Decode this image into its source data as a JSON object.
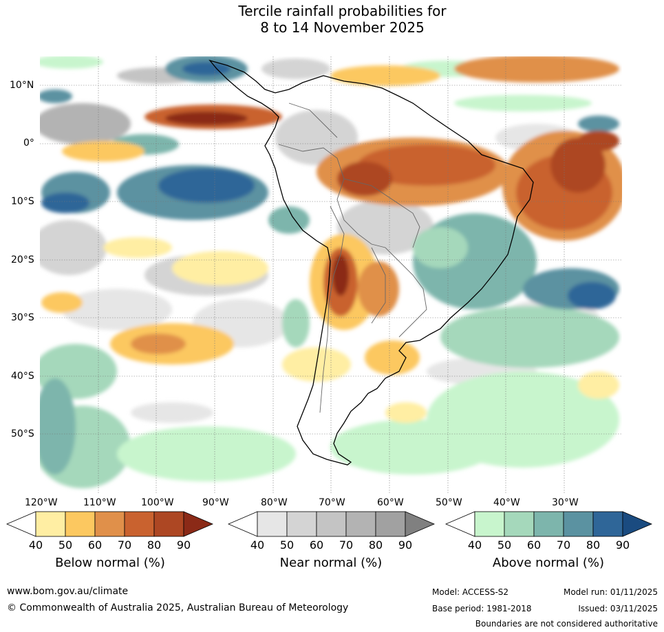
{
  "title": {
    "line1": "Tercile rainfall probabilities for",
    "line2": "8 to 14 November 2025"
  },
  "map": {
    "region": "South America",
    "lat_labels": [
      "10°N",
      "0°",
      "10°S",
      "20°S",
      "30°S",
      "40°S",
      "50°S"
    ],
    "lon_labels": [
      "120°W",
      "110°W",
      "100°W",
      "90°W",
      "80°W",
      "70°W",
      "60°W",
      "50°W",
      "40°W",
      "30°W"
    ]
  },
  "colorbars": [
    {
      "id": "below",
      "title": "Below normal (%)",
      "ticks": [
        "40",
        "50",
        "60",
        "70",
        "80",
        "90"
      ],
      "colors": [
        "#ffeea3",
        "#fcc860",
        "#e0904a",
        "#c9622f",
        "#ad4723",
        "#8b2a17"
      ]
    },
    {
      "id": "near",
      "title": "Near normal (%)",
      "ticks": [
        "40",
        "50",
        "60",
        "70",
        "80",
        "90"
      ],
      "colors": [
        "#e6e6e6",
        "#d4d4d4",
        "#c4c4c4",
        "#b3b3b3",
        "#a1a1a1",
        "#808080"
      ]
    },
    {
      "id": "above",
      "title": "Above normal (%)",
      "ticks": [
        "40",
        "50",
        "60",
        "70",
        "80",
        "90"
      ],
      "colors": [
        "#c8f5cd",
        "#a5d8bb",
        "#7db5ac",
        "#5b92a1",
        "#2f6698",
        "#1a4b80"
      ]
    }
  ],
  "footer": {
    "website": "www.bom.gov.au/climate",
    "copyright": "© Commonwealth of Australia 2025, Australian Bureau of Meteorology",
    "model": "Model: ACCESS-S2",
    "model_run": "Model run: 01/11/2025",
    "base_period": "Base period: 1981-2018",
    "issued": "Issued: 03/11/2025",
    "disclaimer": "Boundaries are not considered authoritative"
  }
}
